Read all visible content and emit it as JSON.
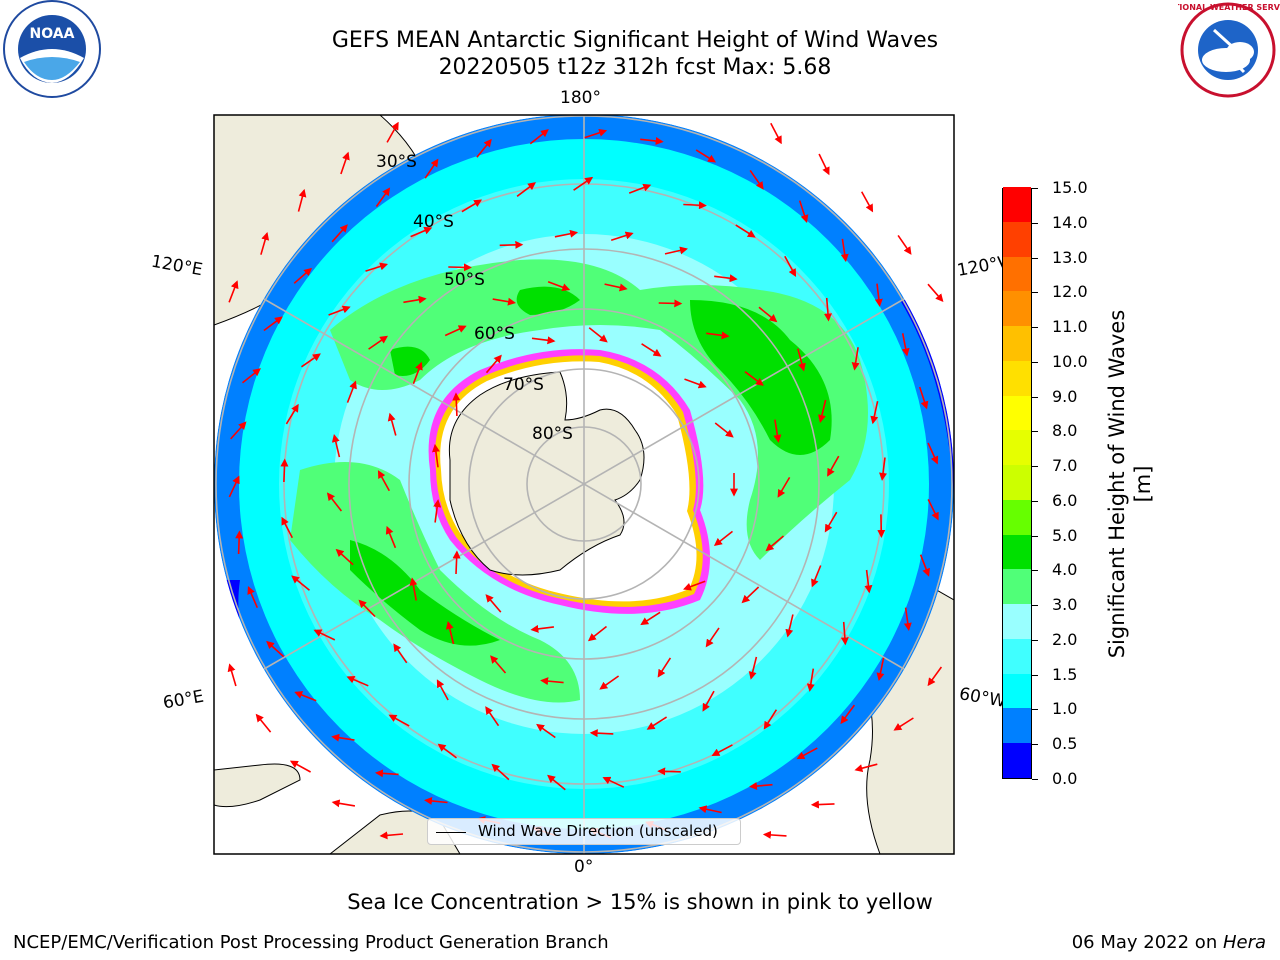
{
  "header": {
    "title_line1": "GEFS MEAN Antarctic Significant Height of Wind Waves",
    "title_line2": "20220505 t12z 312h fcst   Max: 5.68"
  },
  "map": {
    "projection": "south polar stereographic",
    "longitude_labels": {
      "top": "180°",
      "bottom": "0°",
      "upper_left": "120°E",
      "lower_left": "60°E",
      "upper_right": "120°W",
      "lower_right": "60°W"
    },
    "latitude_labels": [
      "30°S",
      "40°S",
      "50°S",
      "60°S",
      "70°S",
      "80°S"
    ],
    "legend_label": "Wind Wave Direction (unscaled)",
    "arrow_color": "#ff0000",
    "land_color": "#eeecdc",
    "graticule_color": "#b4b4b4"
  },
  "colorbar": {
    "label": "Significant Height of Wind Waves [m]",
    "ticks": [
      "0.0",
      "0.5",
      "1.0",
      "1.5",
      "2.0",
      "3.0",
      "4.0",
      "5.0",
      "6.0",
      "7.0",
      "8.0",
      "9.0",
      "10.0",
      "11.0",
      "12.0",
      "13.0",
      "14.0",
      "15.0"
    ],
    "colors": [
      "#0000ff",
      "#0080ff",
      "#00ffff",
      "#40ffff",
      "#99ffff",
      "#50ff78",
      "#00e000",
      "#66ff00",
      "#ccff00",
      "#e6ff00",
      "#ffff00",
      "#ffe000",
      "#ffc000",
      "#ff9000",
      "#ff7000",
      "#ff4000",
      "#ff0000"
    ]
  },
  "caption": "Sea Ice Concentration > 15% is shown in pink to yellow",
  "footer": {
    "left": "NCEP/EMC/Verification Post Processing Product Generation Branch",
    "right_prefix": "06 May 2022 on ",
    "right_host": "Hera"
  },
  "logos": {
    "noaa_text": "NOAA",
    "nws_text": "NATIONAL WEATHER SERVICE"
  }
}
